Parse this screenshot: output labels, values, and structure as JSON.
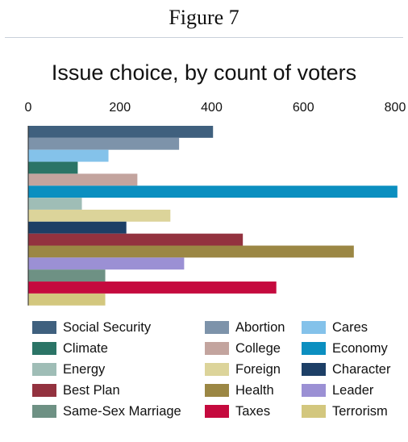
{
  "figure_label": "Figure 7",
  "chart_data": {
    "type": "bar",
    "orientation": "horizontal",
    "title": "Issue choice, by count of voters",
    "xlabel": "",
    "ylabel": "",
    "xlim": [
      0,
      800
    ],
    "xticks": [
      0,
      200,
      400,
      600,
      800
    ],
    "xtick_labels": [
      "0",
      "200",
      "400",
      "600",
      "800"
    ],
    "grid": false,
    "legend_position": "bottom",
    "categories": [
      "Social Security",
      "Abortion",
      "Cares",
      "Climate",
      "College",
      "Economy",
      "Energy",
      "Foreign",
      "Character",
      "Best Plan",
      "Health",
      "Leader",
      "Same-Sex Marriage",
      "Taxes",
      "Terrorism"
    ],
    "values": [
      403,
      329,
      175,
      108,
      238,
      805,
      117,
      310,
      214,
      468,
      710,
      340,
      168,
      541,
      168
    ],
    "colors": [
      "#3f607e",
      "#7d93aa",
      "#84c2ea",
      "#2b7466",
      "#c3a49e",
      "#0b8fc0",
      "#9fbdb6",
      "#dcd49a",
      "#1d3f66",
      "#93323f",
      "#9b8744",
      "#9b90d4",
      "#6e9184",
      "#c50a3e",
      "#d3c77e"
    ]
  }
}
